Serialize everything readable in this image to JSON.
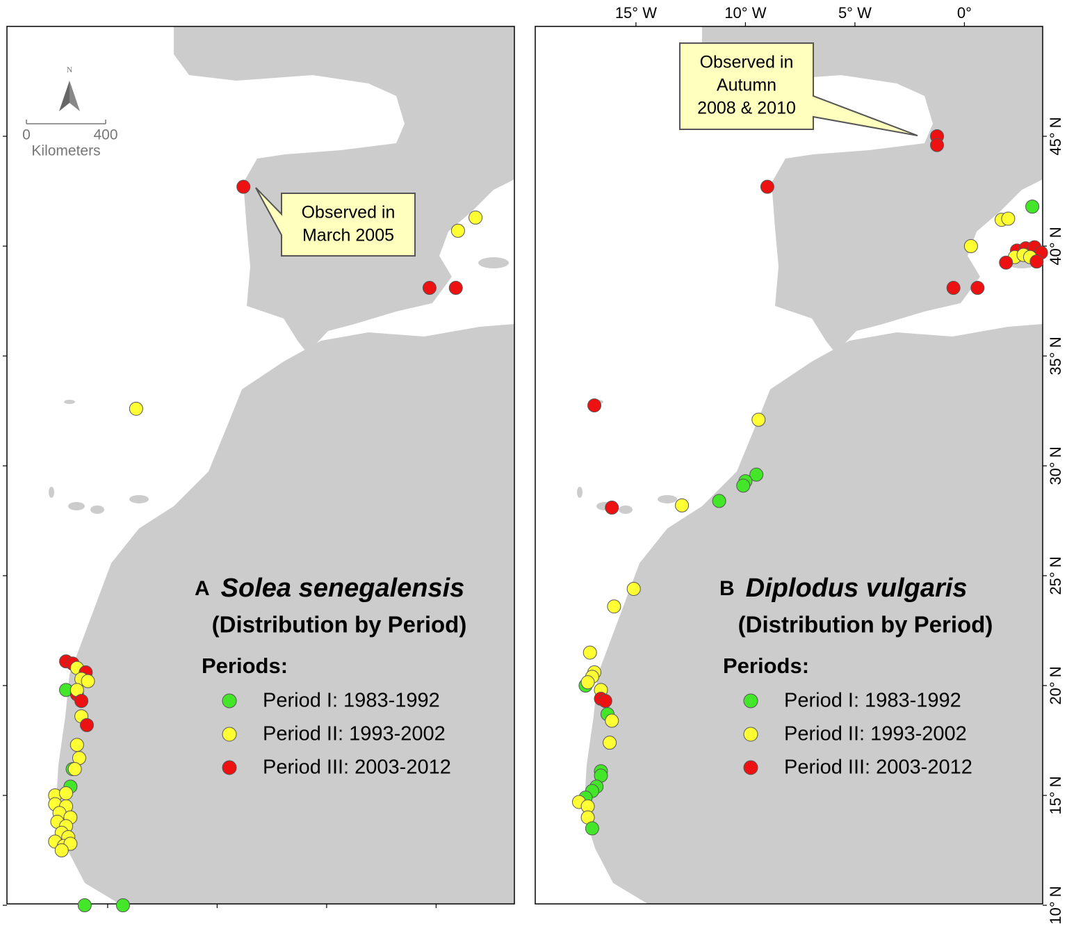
{
  "panels": [
    {
      "label": "A",
      "species": "Solea senegalensis",
      "subtitle": "(Distribution by Period)",
      "legend": {
        "title": "Periods:",
        "entries": [
          {
            "name": "Period I: 1983-1992",
            "color": "#44e62a"
          },
          {
            "name": "Period II: 1993-2002",
            "color": "#ffff33"
          },
          {
            "name": "Period III: 2003-2012",
            "color": "#ee1111"
          }
        ]
      },
      "callout": {
        "lines": [
          "Observed in",
          "March 2005"
        ]
      },
      "scale_bar": {
        "north": "N",
        "ticks": [
          0,
          400
        ],
        "unit": "Kilometers"
      },
      "points": [
        {
          "lon": -8.8,
          "lat": 42.7,
          "period": 2
        },
        {
          "lon": 1.0,
          "lat": 40.7,
          "period": 1
        },
        {
          "lon": 1.8,
          "lat": 41.3,
          "period": 1
        },
        {
          "lon": -0.3,
          "lat": 38.1,
          "period": 2
        },
        {
          "lon": 0.9,
          "lat": 38.1,
          "period": 2
        },
        {
          "lon": -13.7,
          "lat": 32.6,
          "period": 1
        },
        {
          "lon": -16.9,
          "lat": 21.1,
          "period": 2
        },
        {
          "lon": -16.6,
          "lat": 21.0,
          "period": 2
        },
        {
          "lon": -16.4,
          "lat": 20.8,
          "period": 1
        },
        {
          "lon": -16.0,
          "lat": 20.6,
          "period": 2
        },
        {
          "lon": -16.2,
          "lat": 20.3,
          "period": 1
        },
        {
          "lon": -15.9,
          "lat": 20.2,
          "period": 1
        },
        {
          "lon": -16.9,
          "lat": 19.8,
          "period": 0
        },
        {
          "lon": -16.4,
          "lat": 19.6,
          "period": 2
        },
        {
          "lon": -16.4,
          "lat": 19.8,
          "period": 1
        },
        {
          "lon": -16.2,
          "lat": 19.3,
          "period": 2
        },
        {
          "lon": -16.2,
          "lat": 18.6,
          "period": 1
        },
        {
          "lon": -15.95,
          "lat": 18.2,
          "period": 2
        },
        {
          "lon": -16.4,
          "lat": 17.3,
          "period": 1
        },
        {
          "lon": -16.3,
          "lat": 16.7,
          "period": 1
        },
        {
          "lon": -16.6,
          "lat": 16.2,
          "period": 0
        },
        {
          "lon": -16.5,
          "lat": 16.2,
          "period": 1
        },
        {
          "lon": -16.7,
          "lat": 15.4,
          "period": 0
        },
        {
          "lon": -17.4,
          "lat": 15.0,
          "period": 1
        },
        {
          "lon": -16.9,
          "lat": 15.1,
          "period": 1
        },
        {
          "lon": -17.4,
          "lat": 14.6,
          "period": 1
        },
        {
          "lon": -16.9,
          "lat": 14.5,
          "period": 1
        },
        {
          "lon": -17.2,
          "lat": 14.2,
          "period": 1
        },
        {
          "lon": -16.7,
          "lat": 14.0,
          "period": 1
        },
        {
          "lon": -17.3,
          "lat": 13.8,
          "period": 1
        },
        {
          "lon": -16.9,
          "lat": 13.6,
          "period": 1
        },
        {
          "lon": -17.1,
          "lat": 13.3,
          "period": 1
        },
        {
          "lon": -16.8,
          "lat": 13.1,
          "period": 1
        },
        {
          "lon": -17.4,
          "lat": 12.9,
          "period": 1
        },
        {
          "lon": -17.0,
          "lat": 12.7,
          "period": 1
        },
        {
          "lon": -16.7,
          "lat": 12.8,
          "period": 1
        },
        {
          "lon": -17.1,
          "lat": 12.5,
          "period": 1
        },
        {
          "lon": -16.05,
          "lat": 10.0,
          "period": 0
        },
        {
          "lon": -14.3,
          "lat": 10.0,
          "period": 0
        }
      ]
    },
    {
      "label": "B",
      "species": "Diplodus vulgaris",
      "subtitle": "(Distribution by Period)",
      "legend": {
        "title": "Periods:",
        "entries": [
          {
            "name": "Period I: 1983-1992",
            "color": "#44e62a"
          },
          {
            "name": "Period II: 1993-2002",
            "color": "#ffff33"
          },
          {
            "name": "Period III: 2003-2012",
            "color": "#ee1111"
          }
        ]
      },
      "callout": {
        "lines": [
          "Observed in",
          "Autumn",
          "2008 & 2010"
        ]
      },
      "points": [
        {
          "lon": -1.25,
          "lat": 45.0,
          "period": 2
        },
        {
          "lon": -1.25,
          "lat": 44.6,
          "period": 2
        },
        {
          "lon": -9.0,
          "lat": 42.7,
          "period": 2
        },
        {
          "lon": 3.1,
          "lat": 41.8,
          "period": 0
        },
        {
          "lon": 1.7,
          "lat": 41.2,
          "period": 1
        },
        {
          "lon": 2.0,
          "lat": 41.25,
          "period": 1
        },
        {
          "lon": 0.3,
          "lat": 40.0,
          "period": 1
        },
        {
          "lon": 2.4,
          "lat": 39.8,
          "period": 2
        },
        {
          "lon": 2.8,
          "lat": 39.9,
          "period": 2
        },
        {
          "lon": 3.2,
          "lat": 39.95,
          "period": 2
        },
        {
          "lon": 3.5,
          "lat": 39.7,
          "period": 2
        },
        {
          "lon": 2.3,
          "lat": 39.5,
          "period": 1
        },
        {
          "lon": 2.7,
          "lat": 39.6,
          "period": 1
        },
        {
          "lon": 3.0,
          "lat": 39.5,
          "period": 1
        },
        {
          "lon": 3.3,
          "lat": 39.3,
          "period": 2
        },
        {
          "lon": 1.9,
          "lat": 39.25,
          "period": 2
        },
        {
          "lon": -0.5,
          "lat": 38.1,
          "period": 2
        },
        {
          "lon": 0.6,
          "lat": 38.1,
          "period": 2
        },
        {
          "lon": -16.9,
          "lat": 32.75,
          "period": 2
        },
        {
          "lon": -9.4,
          "lat": 32.1,
          "period": 1
        },
        {
          "lon": -9.5,
          "lat": 29.6,
          "period": 0
        },
        {
          "lon": -10.0,
          "lat": 29.3,
          "period": 0
        },
        {
          "lon": -10.1,
          "lat": 29.1,
          "period": 0
        },
        {
          "lon": -11.2,
          "lat": 28.4,
          "period": 0
        },
        {
          "lon": -12.9,
          "lat": 28.2,
          "period": 1
        },
        {
          "lon": -16.1,
          "lat": 28.1,
          "period": 2
        },
        {
          "lon": -15.1,
          "lat": 24.4,
          "period": 1
        },
        {
          "lon": -16.0,
          "lat": 23.6,
          "period": 1
        },
        {
          "lon": -17.1,
          "lat": 21.5,
          "period": 1
        },
        {
          "lon": -16.9,
          "lat": 20.6,
          "period": 1
        },
        {
          "lon": -17.0,
          "lat": 20.4,
          "period": 1
        },
        {
          "lon": -17.3,
          "lat": 20.0,
          "period": 0
        },
        {
          "lon": -17.2,
          "lat": 20.15,
          "period": 1
        },
        {
          "lon": -16.6,
          "lat": 19.8,
          "period": 1
        },
        {
          "lon": -16.6,
          "lat": 19.4,
          "period": 2
        },
        {
          "lon": -16.4,
          "lat": 19.3,
          "period": 2
        },
        {
          "lon": -16.3,
          "lat": 18.7,
          "period": 0
        },
        {
          "lon": -16.1,
          "lat": 18.4,
          "period": 1
        },
        {
          "lon": -16.2,
          "lat": 17.4,
          "period": 1
        },
        {
          "lon": -16.6,
          "lat": 16.1,
          "period": 0
        },
        {
          "lon": -16.6,
          "lat": 15.9,
          "period": 0
        },
        {
          "lon": -16.8,
          "lat": 15.4,
          "period": 0
        },
        {
          "lon": -17.0,
          "lat": 15.2,
          "period": 0
        },
        {
          "lon": -17.3,
          "lat": 14.9,
          "period": 0
        },
        {
          "lon": -17.6,
          "lat": 14.7,
          "period": 1
        },
        {
          "lon": -17.2,
          "lat": 14.5,
          "period": 1
        },
        {
          "lon": -17.2,
          "lat": 14.0,
          "period": 1
        },
        {
          "lon": -17.0,
          "lat": 13.5,
          "period": 0
        }
      ]
    }
  ],
  "lon_ticks": [
    {
      "value": -15,
      "label": "15° W"
    },
    {
      "value": -10,
      "label": "10° W"
    },
    {
      "value": -5,
      "label": "5° W"
    },
    {
      "value": 0,
      "label": "0°"
    }
  ],
  "lat_ticks": [
    {
      "value": 45,
      "label": "45° N"
    },
    {
      "value": 40,
      "label": "40° N"
    },
    {
      "value": 35,
      "label": "35° N"
    },
    {
      "value": 30,
      "label": "30° N"
    },
    {
      "value": 25,
      "label": "25° N"
    },
    {
      "value": 20,
      "label": "20° N"
    },
    {
      "value": 15,
      "label": "15° N"
    },
    {
      "value": 10,
      "label": "10° N"
    }
  ]
}
